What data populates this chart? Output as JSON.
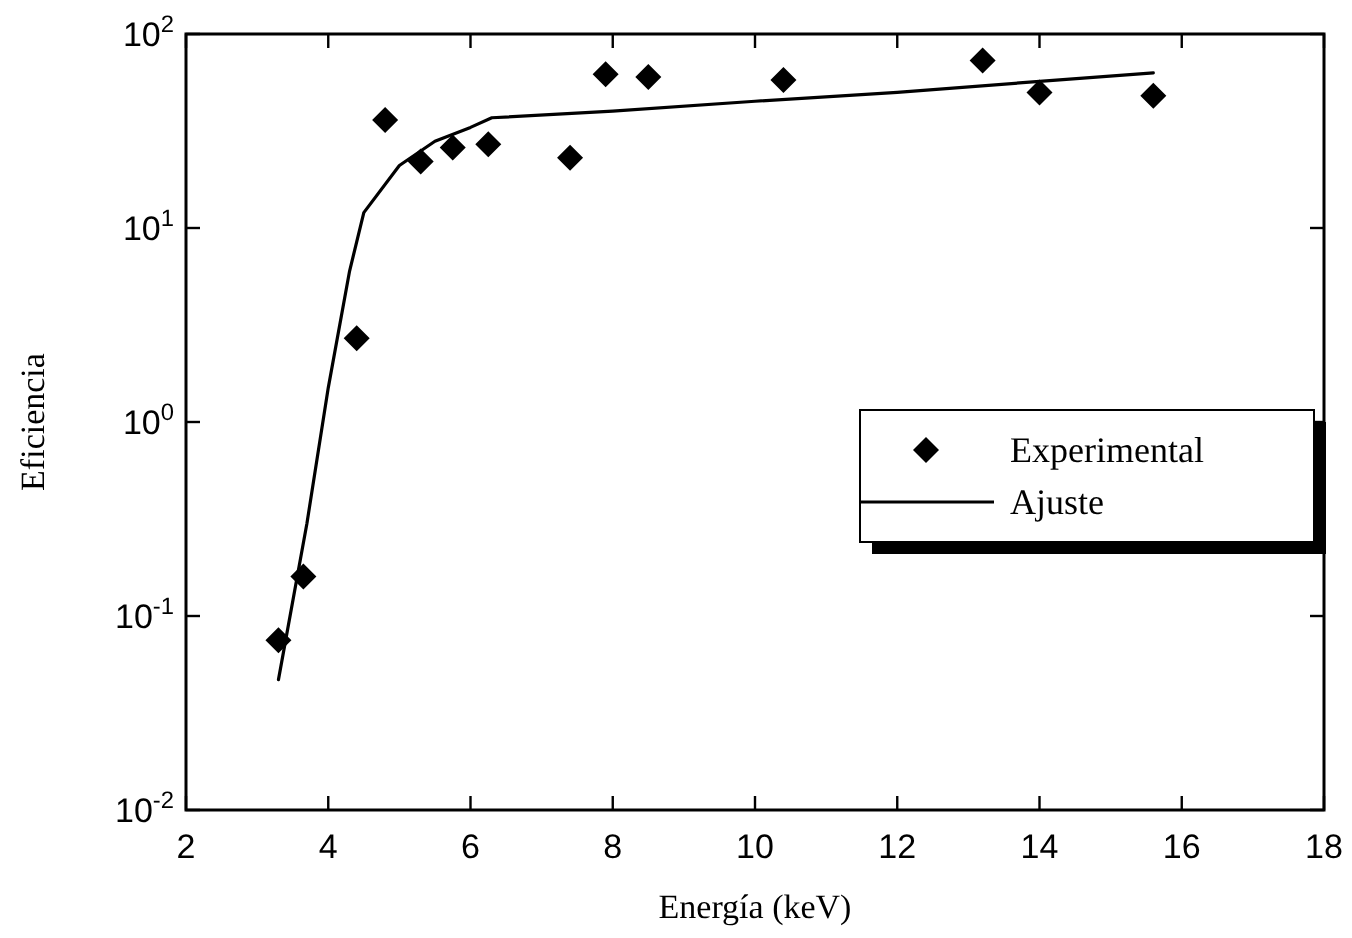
{
  "chart_data": {
    "type": "scatter",
    "xlabel": "Energía (keV)",
    "ylabel": "Eficiencia",
    "log": "y",
    "xlim": [
      2,
      18
    ],
    "xticks": [
      2,
      4,
      6,
      8,
      10,
      12,
      14,
      16,
      18
    ],
    "ylim": [
      0.01,
      100
    ],
    "yticks": [
      {
        "value": 0.01,
        "label": "10$^{-2}$"
      },
      {
        "value": 0.1,
        "label": "10$^{-1}$"
      },
      {
        "value": 1,
        "label": "10$^{0}$"
      },
      {
        "value": 10,
        "label": "10$^{1}$"
      },
      {
        "value": 100,
        "label": "10$^{2}$"
      }
    ],
    "legend": "right",
    "grid": false,
    "series": [
      {
        "name": "Experimental",
        "marker": "diamond",
        "color": "#000000",
        "x": [
          3.3,
          3.65,
          4.4,
          4.8,
          5.3,
          5.75,
          6.25,
          7.4,
          7.9,
          8.5,
          10.4,
          13.2,
          14,
          15.6
        ],
        "values": [
          0.075,
          0.16,
          2.7,
          36,
          22,
          26,
          27,
          23,
          62,
          60,
          58,
          73,
          50,
          48
        ]
      },
      {
        "name": "Ajuste",
        "type": "line",
        "marker": "none",
        "line_style": "solid",
        "color": "#000000",
        "x": [
          3.3,
          3.7,
          4.0,
          4.3,
          4.5,
          5.0,
          5.5,
          6.0,
          6.3,
          8,
          10,
          12,
          14,
          15.6
        ],
        "values": [
          0.047,
          0.3,
          1.5,
          6,
          12,
          21,
          28,
          33,
          37,
          40,
          45,
          50,
          57,
          63
        ]
      }
    ]
  }
}
